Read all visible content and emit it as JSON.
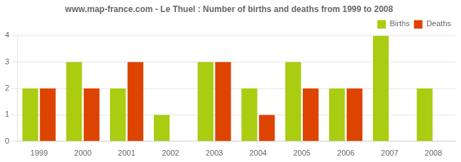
{
  "chart_data": {
    "type": "bar",
    "title": "www.map-france.com - Le Thuel : Number of births and deaths from 1999 to 2008",
    "categories": [
      "1999",
      "2000",
      "2001",
      "2002",
      "2003",
      "2004",
      "2005",
      "2006",
      "2007",
      "2008"
    ],
    "series": [
      {
        "name": "Births",
        "color": "#aacc11",
        "values": [
          2,
          3,
          2,
          1,
          3,
          2,
          3,
          2,
          4,
          2
        ]
      },
      {
        "name": "Deaths",
        "color": "#dd4400",
        "values": [
          2,
          2,
          3,
          0,
          3,
          1,
          2,
          2,
          0,
          0
        ]
      }
    ],
    "ylim": [
      0,
      4
    ],
    "yticks": [
      0,
      1,
      2,
      3,
      4
    ],
    "grid": true,
    "legend": "upper right"
  }
}
